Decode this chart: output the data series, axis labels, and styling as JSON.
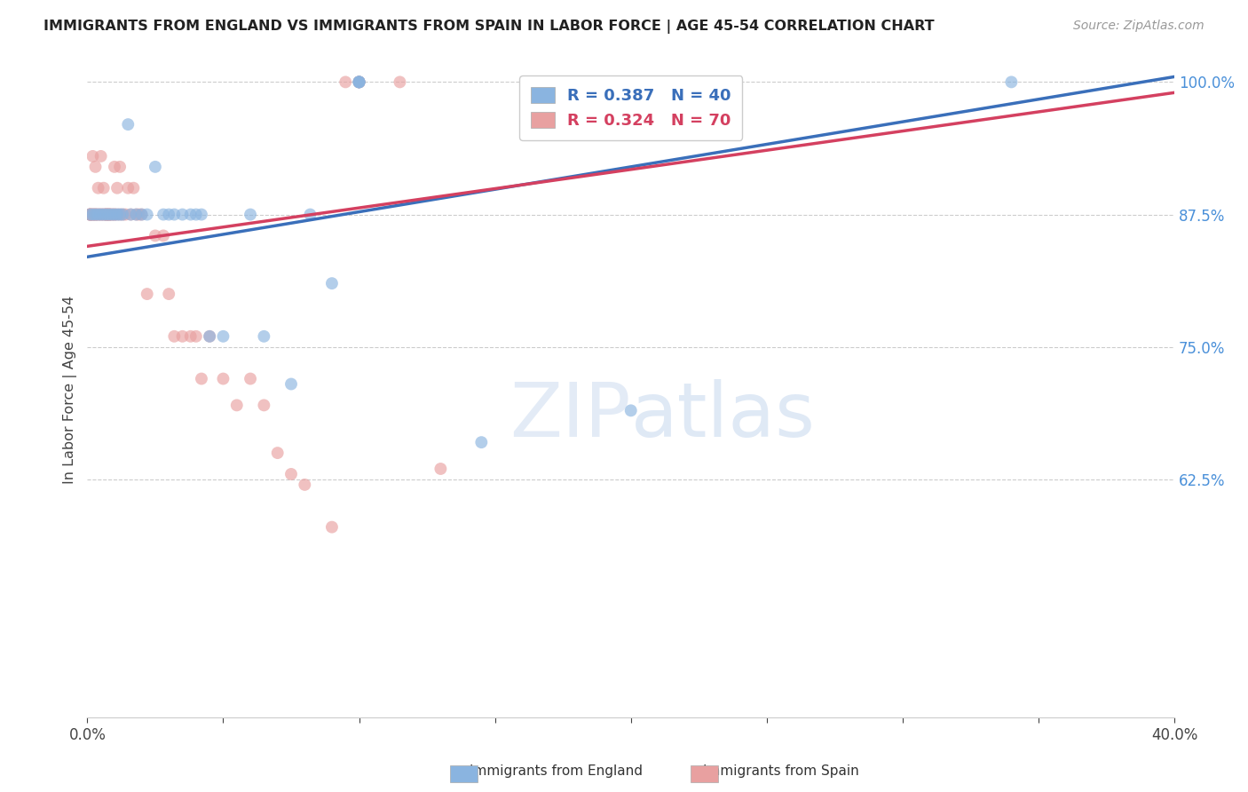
{
  "title": "IMMIGRANTS FROM ENGLAND VS IMMIGRANTS FROM SPAIN IN LABOR FORCE | AGE 45-54 CORRELATION CHART",
  "source": "Source: ZipAtlas.com",
  "ylabel": "In Labor Force | Age 45-54",
  "xlim": [
    0.0,
    0.4
  ],
  "ylim": [
    0.4,
    1.02
  ],
  "yticks": [
    1.0,
    0.875,
    0.75,
    0.625
  ],
  "ytick_labels": [
    "100.0%",
    "87.5%",
    "75.0%",
    "62.5%"
  ],
  "xticks": [
    0.0,
    0.05,
    0.1,
    0.15,
    0.2,
    0.25,
    0.3,
    0.35,
    0.4
  ],
  "xtick_labels": [
    "0.0%",
    "",
    "",
    "",
    "",
    "",
    "",
    "",
    "40.0%"
  ],
  "england_color": "#8ab4e0",
  "spain_color": "#e8a0a0",
  "england_line_color": "#3a6fba",
  "spain_line_color": "#d44060",
  "legend_england_label": "R = 0.387   N = 40",
  "legend_spain_label": "R = 0.324   N = 70",
  "watermark_zip": "ZIP",
  "watermark_atlas": "atlas",
  "england_x": [
    0.001,
    0.002,
    0.003,
    0.004,
    0.005,
    0.006,
    0.007,
    0.008,
    0.009,
    0.01,
    0.011,
    0.012,
    0.013,
    0.015,
    0.016,
    0.018,
    0.02,
    0.022,
    0.025,
    0.028,
    0.03,
    0.032,
    0.035,
    0.038,
    0.04,
    0.042,
    0.045,
    0.05,
    0.06,
    0.065,
    0.075,
    0.082,
    0.09,
    0.1,
    0.1,
    0.1,
    0.1,
    0.145,
    0.2,
    0.34
  ],
  "england_y": [
    0.875,
    0.875,
    0.875,
    0.875,
    0.875,
    0.875,
    0.875,
    0.875,
    0.875,
    0.875,
    0.875,
    0.875,
    0.875,
    0.96,
    0.875,
    0.875,
    0.875,
    0.875,
    0.92,
    0.875,
    0.875,
    0.875,
    0.875,
    0.875,
    0.875,
    0.875,
    0.76,
    0.76,
    0.875,
    0.76,
    0.715,
    0.875,
    0.81,
    1.0,
    1.0,
    1.0,
    1.0,
    0.66,
    0.69,
    1.0
  ],
  "spain_x": [
    0.001,
    0.001,
    0.001,
    0.001,
    0.002,
    0.002,
    0.002,
    0.002,
    0.003,
    0.003,
    0.003,
    0.003,
    0.004,
    0.004,
    0.004,
    0.005,
    0.005,
    0.005,
    0.006,
    0.006,
    0.006,
    0.007,
    0.007,
    0.007,
    0.007,
    0.008,
    0.008,
    0.008,
    0.008,
    0.009,
    0.009,
    0.01,
    0.01,
    0.01,
    0.011,
    0.011,
    0.012,
    0.012,
    0.013,
    0.014,
    0.015,
    0.016,
    0.017,
    0.018,
    0.019,
    0.02,
    0.022,
    0.025,
    0.028,
    0.03,
    0.032,
    0.035,
    0.038,
    0.04,
    0.042,
    0.045,
    0.05,
    0.055,
    0.06,
    0.065,
    0.07,
    0.075,
    0.08,
    0.09,
    0.095,
    0.1,
    0.1,
    0.1,
    0.115,
    0.13
  ],
  "spain_y": [
    0.875,
    0.875,
    0.875,
    0.875,
    0.875,
    0.875,
    0.93,
    0.875,
    0.875,
    0.875,
    0.92,
    0.875,
    0.875,
    0.9,
    0.875,
    0.875,
    0.875,
    0.93,
    0.875,
    0.9,
    0.875,
    0.875,
    0.875,
    0.875,
    0.875,
    0.875,
    0.875,
    0.875,
    0.875,
    0.875,
    0.875,
    0.875,
    0.92,
    0.875,
    0.9,
    0.875,
    0.92,
    0.875,
    0.875,
    0.875,
    0.9,
    0.875,
    0.9,
    0.875,
    0.875,
    0.875,
    0.8,
    0.855,
    0.855,
    0.8,
    0.76,
    0.76,
    0.76,
    0.76,
    0.72,
    0.76,
    0.72,
    0.695,
    0.72,
    0.695,
    0.65,
    0.63,
    0.62,
    0.58,
    1.0,
    1.0,
    1.0,
    1.0,
    1.0,
    0.635
  ],
  "england_line_x0": 0.0,
  "england_line_y0": 0.835,
  "england_line_x1": 0.4,
  "england_line_y1": 1.005,
  "spain_line_x0": 0.0,
  "spain_line_y0": 0.845,
  "spain_line_x1": 0.4,
  "spain_line_y1": 0.99
}
